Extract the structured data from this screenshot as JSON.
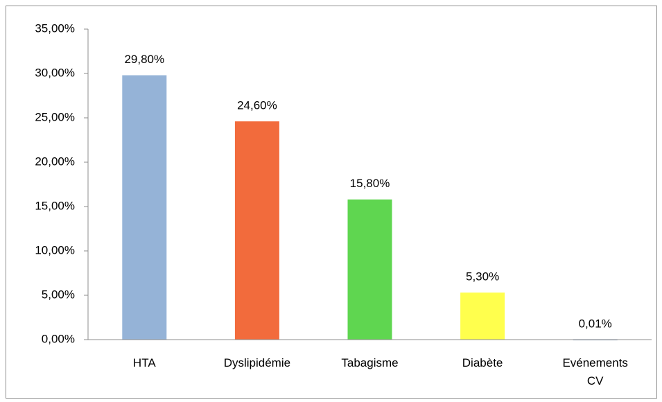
{
  "chart_data": {
    "type": "bar",
    "categories": [
      "HTA",
      "Dyslipidémie",
      "Tabagisme",
      "Diabète",
      "Evénements CV"
    ],
    "values": [
      29.8,
      24.6,
      15.8,
      5.3,
      0.01
    ],
    "value_labels": [
      "29,80%",
      "24,60%",
      "15,80%",
      "5,30%",
      "0,01%"
    ],
    "colors": [
      "#95b3d7",
      "#f26b3c",
      "#5fd650",
      "#ffff4d",
      "#4f6fa0"
    ],
    "ylim": [
      0,
      35
    ],
    "yticks": [
      {
        "value": 0,
        "label": "0,00%"
      },
      {
        "value": 5,
        "label": "5,00%"
      },
      {
        "value": 10,
        "label": "10,00%"
      },
      {
        "value": 15,
        "label": "15,00%"
      },
      {
        "value": 20,
        "label": "20,00%"
      },
      {
        "value": 25,
        "label": "25,00%"
      },
      {
        "value": 30,
        "label": "30,00%"
      },
      {
        "value": 35,
        "label": "35,00%"
      }
    ],
    "grid": false
  }
}
